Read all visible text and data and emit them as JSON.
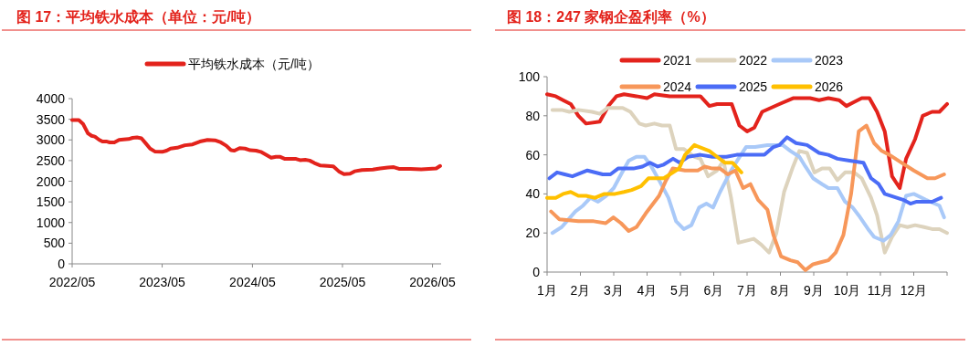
{
  "chart_data": [
    {
      "type": "line",
      "title": "图 17：平均铁水成本（单位：元/吨）",
      "legend": "top",
      "x": [
        "2022-05-01",
        "2022-05-28",
        "2022-06-15",
        "2022-07-04",
        "2022-07-19",
        "2022-08-01",
        "2022-08-19",
        "2022-09-01",
        "2022-09-19",
        "2022-10-01",
        "2022-10-19",
        "2022-11-07",
        "2022-11-25",
        "2022-12-16",
        "2023-01-01",
        "2023-01-19",
        "2023-02-06",
        "2023-02-23",
        "2023-03-13",
        "2023-04-01",
        "2023-05-01",
        "2023-05-19",
        "2023-06-04",
        "2023-07-01",
        "2023-08-01",
        "2023-09-01",
        "2023-10-01",
        "2023-11-01",
        "2023-12-01",
        "2023-12-25",
        "2024-01-16",
        "2024-02-04",
        "2024-02-18",
        "2024-03-10",
        "2024-04-01",
        "2024-04-22",
        "2024-05-16",
        "2024-06-04",
        "2024-06-25",
        "2024-07-16",
        "2024-08-04",
        "2024-08-22",
        "2024-09-10",
        "2024-10-01",
        "2024-10-25",
        "2024-11-10",
        "2024-12-01",
        "2024-12-19",
        "2025-01-07",
        "2025-02-01",
        "2025-03-01",
        "2025-03-25",
        "2025-04-16",
        "2025-05-07",
        "2025-06-01",
        "2025-06-19",
        "2025-07-19",
        "2025-09-01",
        "2025-10-01",
        "2025-11-01",
        "2025-11-25",
        "2025-12-16",
        "2026-02-01",
        "2026-03-16",
        "2026-04-16",
        "2026-05-16",
        "2026-06-01"
      ],
      "series": [
        {
          "name": "平均铁水成本（元/吨）",
          "color": "#e3231c",
          "values": [
            3480,
            3480,
            3380,
            3160,
            3100,
            3080,
            3000,
            2960,
            2960,
            2940,
            2940,
            3000,
            3010,
            3020,
            3050,
            3060,
            3040,
            2920,
            2790,
            2720,
            2710,
            2740,
            2790,
            2810,
            2870,
            2890,
            2960,
            3000,
            2990,
            2940,
            2860,
            2750,
            2740,
            2800,
            2790,
            2750,
            2740,
            2710,
            2640,
            2570,
            2590,
            2590,
            2540,
            2540,
            2540,
            2510,
            2520,
            2500,
            2440,
            2380,
            2370,
            2360,
            2240,
            2170,
            2180,
            2240,
            2270,
            2280,
            2310,
            2330,
            2340,
            2300,
            2300,
            2290,
            2300,
            2310,
            2370
          ]
        }
      ],
      "xlim": [
        "2022-05-01",
        "2026-06-05"
      ],
      "ylim": [
        0,
        4000
      ],
      "xticks": [
        {
          "value": "2022-05",
          "label": "2022/05"
        },
        {
          "value": "2023-05",
          "label": "2023/05"
        },
        {
          "value": "2024-05",
          "label": "2024/05"
        },
        {
          "value": "2025-05",
          "label": "2025/05"
        },
        {
          "value": "2026-05",
          "label": "2026/05"
        }
      ],
      "yticks": [
        0,
        500,
        1000,
        1500,
        2000,
        2500,
        3000,
        3500,
        4000
      ],
      "grid": false
    },
    {
      "type": "line",
      "title": "图 18：247 家钢企盈利率（%）",
      "legend": "top",
      "xlim": [
        1,
        13
      ],
      "ylim": [
        0,
        100
      ],
      "grid": false,
      "xticks": [
        {
          "value": 1,
          "label": "1月"
        },
        {
          "value": 2,
          "label": "2月"
        },
        {
          "value": 3,
          "label": "3月"
        },
        {
          "value": 4,
          "label": "4月"
        },
        {
          "value": 5,
          "label": "5月"
        },
        {
          "value": 6,
          "label": "6月"
        },
        {
          "value": 7,
          "label": "7月"
        },
        {
          "value": 8,
          "label": "8月"
        },
        {
          "value": 9,
          "label": "9月"
        },
        {
          "value": 10,
          "label": "10月"
        },
        {
          "value": 11,
          "label": "11月"
        },
        {
          "value": 12,
          "label": "12月"
        },
        {
          "value": 13,
          "label": null
        }
      ],
      "yticks": [
        0,
        20,
        40,
        60,
        80,
        100
      ],
      "series": [
        {
          "name": "2021",
          "color": "#e3231c",
          "x": [
            1.0,
            1.26,
            1.48,
            1.71,
            1.94,
            2.17,
            2.58,
            2.84,
            3.08,
            3.31,
            3.68,
            4.0,
            4.22,
            4.68,
            5.6,
            5.87,
            6.1,
            6.33,
            6.54,
            6.77,
            7.0,
            7.22,
            7.45,
            7.97,
            8.38,
            8.89,
            9.16,
            9.44,
            9.76,
            9.98,
            10.21,
            10.44,
            10.67,
            10.9,
            11.13,
            11.35,
            11.58,
            11.77,
            12.04,
            12.27,
            12.55,
            12.77,
            13.0
          ],
          "values": [
            91,
            90,
            88,
            86,
            80,
            76,
            77,
            85,
            90,
            91,
            90,
            89,
            91,
            90,
            90,
            85,
            86,
            86,
            86,
            75,
            72,
            74,
            82,
            86,
            89,
            89,
            88,
            89,
            88,
            85,
            87,
            89,
            89,
            82,
            72,
            49,
            43,
            58,
            68,
            80,
            82,
            82,
            86
          ]
        },
        {
          "name": "2022",
          "color": "#ddd3bd",
          "x": [
            1.16,
            1.44,
            1.67,
            1.94,
            2.35,
            2.58,
            2.81,
            3.27,
            3.5,
            3.77,
            3.96,
            4.22,
            4.45,
            4.68,
            4.87,
            5.1,
            5.42,
            5.6,
            5.83,
            6.1,
            6.29,
            6.52,
            6.74,
            7.2,
            7.43,
            7.66,
            7.88,
            8.11,
            8.38,
            8.57,
            8.8,
            9.02,
            9.25,
            9.48,
            9.71,
            9.94,
            10.21,
            10.44,
            10.72,
            10.9,
            11.13,
            11.35,
            11.58,
            11.81,
            12.04,
            12.31,
            12.55,
            12.77,
            13.0
          ],
          "values": [
            83,
            83,
            82,
            83,
            82,
            81,
            84,
            84,
            82,
            76,
            75,
            76,
            75,
            75,
            63,
            63,
            59,
            58,
            49,
            52,
            57,
            38,
            15,
            17,
            14,
            10,
            20,
            41,
            54,
            62,
            61,
            51,
            53,
            53,
            47,
            51,
            51,
            48,
            38,
            29,
            10,
            18,
            24,
            23,
            24,
            23,
            22,
            22,
            20
          ]
        },
        {
          "name": "2023",
          "color": "#a9c9f8",
          "x": [
            1.16,
            1.44,
            1.85,
            2.08,
            2.3,
            2.53,
            2.77,
            3.0,
            3.22,
            3.45,
            3.68,
            3.92,
            4.13,
            4.36,
            4.64,
            4.87,
            5.1,
            5.33,
            5.56,
            5.78,
            5.98,
            6.19,
            6.52,
            6.74,
            6.97,
            7.24,
            7.61,
            8.07,
            8.3,
            8.57,
            8.75,
            8.98,
            9.25,
            9.44,
            9.71,
            9.94,
            10.17,
            10.35,
            10.63,
            10.81,
            11.09,
            11.31,
            11.54,
            11.77,
            12.0,
            12.36,
            12.77,
            12.91
          ],
          "values": [
            20,
            23,
            31,
            34,
            38,
            36,
            39,
            43,
            50,
            57,
            59,
            59,
            54,
            47,
            38,
            26,
            22,
            24,
            33,
            35,
            33,
            41,
            52,
            58,
            64,
            64,
            65,
            65,
            62,
            59,
            54,
            48,
            45,
            43,
            43,
            36,
            33,
            29,
            22,
            18,
            16,
            19,
            26,
            39,
            40,
            37,
            34,
            28
          ]
        },
        {
          "name": "2024",
          "color": "#f7975a",
          "x": [
            1.12,
            1.37,
            1.94,
            2.4,
            2.76,
            2.99,
            3.22,
            3.45,
            3.68,
            3.96,
            4.36,
            4.57,
            4.77,
            5.14,
            5.52,
            5.73,
            5.96,
            6.19,
            6.42,
            6.65,
            6.88,
            7.1,
            7.33,
            7.61,
            7.79,
            8.02,
            8.3,
            8.52,
            8.75,
            8.98,
            9.21,
            9.44,
            9.66,
            9.89,
            10.12,
            10.35,
            10.58,
            10.81,
            11.04,
            11.27,
            11.63,
            12.0,
            12.41,
            12.64,
            12.91
          ],
          "values": [
            31,
            27,
            26,
            26,
            25,
            28,
            25,
            21,
            23,
            30,
            39,
            47,
            53,
            52,
            52,
            54,
            53,
            53,
            50,
            52,
            43,
            45,
            37,
            32,
            19,
            8,
            6,
            5,
            1,
            4,
            5,
            6,
            10,
            19,
            40,
            72,
            75,
            66,
            62,
            60,
            56,
            52,
            48,
            48,
            50
          ]
        },
        {
          "name": "2025",
          "color": "#4b6cf6",
          "x": [
            1.07,
            1.3,
            1.53,
            1.76,
            2.21,
            2.67,
            2.9,
            3.13,
            3.59,
            3.86,
            4.09,
            4.32,
            4.5,
            4.78,
            4.98,
            5.23,
            5.6,
            5.96,
            6.38,
            6.69,
            7.24,
            7.52,
            7.79,
            7.97,
            8.2,
            8.47,
            8.8,
            9.16,
            9.44,
            9.71,
            10.08,
            10.49,
            10.72,
            10.95,
            11.13,
            11.68,
            11.9,
            12.09,
            12.55,
            12.82
          ],
          "values": [
            48,
            51,
            50,
            49,
            52,
            50,
            50,
            53,
            53,
            54,
            56,
            54,
            55,
            58,
            56,
            59,
            60,
            59,
            59,
            60,
            60,
            60,
            64,
            65,
            69,
            66,
            65,
            61,
            60,
            58,
            57,
            56,
            48,
            45,
            40,
            37,
            35,
            36,
            36,
            38
          ]
        },
        {
          "name": "2026",
          "color": "#ffc000",
          "x": [
            1.0,
            1.26,
            1.48,
            1.71,
            1.94,
            2.17,
            2.44,
            2.72,
            3.04,
            3.31,
            3.54,
            3.82,
            4.04,
            4.5,
            4.78,
            4.96,
            5.14,
            5.42,
            5.87,
            6.1,
            6.33,
            6.56,
            6.83
          ],
          "values": [
            38,
            38,
            40,
            41,
            39,
            39,
            38,
            40,
            40,
            41,
            42,
            44,
            48,
            48,
            51,
            53,
            60,
            65,
            62,
            59,
            56,
            56,
            51
          ]
        }
      ]
    }
  ]
}
